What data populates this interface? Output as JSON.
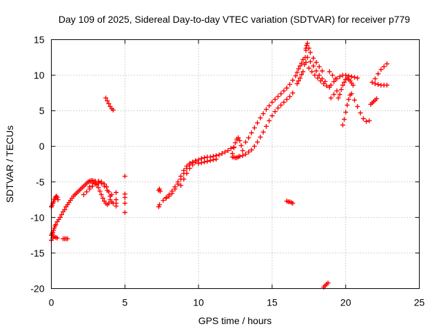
{
  "chart_data": {
    "type": "scatter",
    "title": "Day 109 of 2025, Sidereal Day-to-day VTEC variation (SDTVAR) for receiver p779",
    "xlabel": "GPS time / hours",
    "ylabel": "SDTVAR / TECUs",
    "xlim": [
      0,
      25
    ],
    "ylim": [
      -20,
      15
    ],
    "xticks": [
      0,
      5,
      10,
      15,
      20,
      25
    ],
    "yticks": [
      -20,
      -15,
      -10,
      -5,
      0,
      5,
      10,
      15
    ],
    "xtick_labels": [
      "0",
      "5",
      "10",
      "15",
      "20",
      "25"
    ],
    "ytick_labels": [
      "-20",
      "-15",
      "-10",
      "-5",
      "0",
      "5",
      "10",
      "15"
    ],
    "grid": true,
    "marker": "+",
    "color": "#ff0000",
    "series": [
      {
        "name": "SDTVAR",
        "x": [
          0.0,
          0.05,
          0.1,
          0.15,
          0.2,
          0.25,
          0.3,
          0.35,
          0.4,
          0.45,
          0.0,
          0.05,
          0.1,
          0.15,
          0.2,
          0.25,
          0.3,
          0.4,
          0.5,
          0.6,
          0.7,
          0.8,
          0.9,
          1.0,
          1.1,
          1.2,
          1.3,
          1.4,
          1.5,
          1.6,
          1.7,
          1.8,
          1.9,
          2.0,
          2.1,
          2.2,
          2.3,
          2.4,
          2.5,
          2.6,
          2.7,
          2.8,
          2.9,
          3.0,
          3.1,
          3.2,
          3.3,
          3.4,
          3.5,
          3.6,
          3.7,
          3.8,
          3.9,
          4.0,
          4.1,
          2.2,
          2.4,
          2.6,
          2.8,
          3.0,
          3.2,
          3.4,
          3.6,
          3.8,
          4.0,
          4.2,
          2.6,
          2.8,
          3.0,
          3.2,
          3.4,
          3.6,
          3.75,
          3.9,
          4.0,
          4.1,
          0.0,
          0.1,
          0.2,
          0.3,
          0.4,
          0.8,
          0.9,
          1.0,
          1.1,
          3.7,
          3.8,
          3.9,
          4.0,
          4.1,
          4.2,
          4.4,
          4.4,
          4.4,
          4.4,
          5.0,
          5.0,
          5.0,
          5.0,
          5.0,
          7.3,
          7.35,
          7.4,
          7.3,
          7.35,
          7.6,
          7.8,
          8.0,
          8.2,
          8.4,
          8.6,
          8.8,
          9.0,
          9.2,
          9.4,
          9.6,
          9.8,
          7.8,
          8.0,
          8.2,
          8.4,
          8.6,
          8.8,
          9.0,
          9.2,
          9.4,
          9.6,
          8.8,
          9.0,
          9.2,
          9.4,
          9.6,
          9.8,
          10.0,
          10.2,
          10.4,
          10.6,
          10.8,
          11.0,
          11.2,
          11.4,
          11.6,
          11.8,
          12.0,
          12.2,
          12.4,
          10.0,
          10.2,
          10.4,
          10.6,
          10.8,
          11.0,
          11.2,
          12.3,
          12.4,
          12.5,
          12.6,
          12.7,
          12.8,
          12.9,
          13.0,
          12.3,
          12.4,
          12.5,
          12.6,
          12.7,
          12.8,
          13.0,
          13.2,
          13.4,
          13.6,
          13.8,
          14.0,
          14.2,
          14.4,
          14.6,
          14.8,
          15.0,
          15.2,
          15.4,
          15.6,
          15.8,
          16.0,
          16.2,
          16.4,
          13.2,
          13.4,
          13.6,
          13.8,
          14.0,
          14.2,
          14.4,
          14.6,
          14.8,
          15.0,
          15.2,
          15.4,
          15.6,
          15.8,
          16.0,
          16.2,
          16.4,
          16.6,
          16.7,
          16.8,
          16.9,
          17.0,
          17.1,
          17.3,
          16.7,
          16.8,
          16.9,
          17.0,
          17.1,
          17.2,
          17.25,
          17.3,
          17.35,
          17.4,
          17.5,
          17.6,
          17.8,
          18.0,
          18.2,
          18.4,
          17.4,
          17.6,
          17.8,
          18.0,
          18.2,
          18.4,
          18.6,
          17.3,
          17.5,
          17.7,
          17.9,
          18.1,
          18.3,
          18.5,
          18.7,
          18.9,
          18.9,
          19.1,
          19.3,
          18.5,
          18.6,
          18.7,
          18.8,
          16.0,
          16.1,
          16.2,
          16.3,
          16.4,
          19.0,
          19.2,
          19.4,
          19.0,
          19.2,
          19.4,
          19.6,
          19.8,
          20.0,
          20.2,
          20.4,
          20.6,
          20.8,
          19.5,
          19.6,
          19.7,
          19.8,
          19.9,
          20.0,
          20.1,
          20.2,
          20.3,
          20.4,
          20.5,
          19.8,
          19.9,
          20.0,
          20.1,
          20.2,
          20.3,
          20.4,
          20.6,
          20.8,
          21.0,
          21.2,
          21.4,
          21.6,
          21.8,
          22.0,
          22.2,
          22.4,
          22.6,
          22.8,
          22.0,
          22.2,
          22.4,
          22.6,
          22.8,
          21.7,
          21.8,
          21.9,
          22.0,
          22.1
        ],
        "y": [
          -8.5,
          -8.3,
          -8.0,
          -7.8,
          -7.5,
          -7.3,
          -7.1,
          -7.0,
          -7.2,
          -7.5,
          -12.5,
          -12.3,
          -12.1,
          -11.8,
          -11.5,
          -11.2,
          -11.0,
          -10.6,
          -10.3,
          -10.0,
          -9.6,
          -9.2,
          -8.9,
          -8.5,
          -8.2,
          -7.9,
          -7.6,
          -7.3,
          -7.0,
          -6.8,
          -6.6,
          -6.4,
          -6.2,
          -6.0,
          -5.8,
          -5.6,
          -5.4,
          -5.2,
          -5.0,
          -4.9,
          -4.8,
          -4.8,
          -4.9,
          -5.1,
          -5.4,
          -5.8,
          -6.3,
          -6.8,
          -7.3,
          -7.7,
          -8.0,
          -8.2,
          -8.0,
          -7.5,
          -6.8,
          -6.8,
          -6.4,
          -6.0,
          -5.6,
          -5.3,
          -5.1,
          -5.2,
          -5.6,
          -6.2,
          -7.0,
          -8.0,
          -5.7,
          -5.2,
          -4.9,
          -4.9,
          -5.0,
          -5.3,
          -5.7,
          -6.4,
          -7.0,
          -7.8,
          -13.2,
          -12.9,
          -12.7,
          -12.8,
          -12.9,
          -13.0,
          -13.0,
          -13.0,
          -13.0,
          6.8,
          6.4,
          6.0,
          5.6,
          5.3,
          5.1,
          -6.5,
          -7.5,
          -8.0,
          -8.4,
          -4.2,
          -6.7,
          -7.2,
          -8.0,
          -9.3,
          -6.2,
          -6.0,
          -6.3,
          -8.5,
          -8.2,
          -7.6,
          -7.2,
          -6.8,
          -6.3,
          -5.7,
          -5.0,
          -4.2,
          -3.4,
          -2.8,
          -2.4,
          -2.2,
          -2.0,
          -7.3,
          -7.0,
          -6.6,
          -6.0,
          -5.3,
          -4.6,
          -3.8,
          -3.1,
          -2.6,
          -2.3,
          -5.5,
          -4.6,
          -3.8,
          -3.1,
          -2.6,
          -2.2,
          -1.9,
          -1.7,
          -1.6,
          -1.5,
          -1.5,
          -1.4,
          -1.3,
          -1.2,
          -1.0,
          -0.8,
          -0.6,
          -0.3,
          -0.1,
          -2.4,
          -2.3,
          -2.2,
          -2.1,
          -2.0,
          -1.9,
          -1.8,
          -1.0,
          -0.2,
          0.5,
          1.0,
          1.2,
          0.8,
          0.1,
          -0.6,
          -1.5,
          -1.5,
          -1.6,
          -1.6,
          -1.5,
          -1.4,
          -1.3,
          -1.1,
          -0.8,
          -0.5,
          0.0,
          0.6,
          1.3,
          2.0,
          2.8,
          3.6,
          4.3,
          4.9,
          5.4,
          5.8,
          6.2,
          6.6,
          7.0,
          7.5,
          0.6,
          1.2,
          1.9,
          2.6,
          3.3,
          4.0,
          4.6,
          5.2,
          5.7,
          6.2,
          6.6,
          7.0,
          7.4,
          7.8,
          8.2,
          8.7,
          9.3,
          9.9,
          10.4,
          10.9,
          11.3,
          11.7,
          12.2,
          13.8,
          8.8,
          9.2,
          9.6,
          10.1,
          10.5,
          11.5,
          12.5,
          13.5,
          14.2,
          14.5,
          13.8,
          13.2,
          12.4,
          11.8,
          11.2,
          10.6,
          12.5,
          11.9,
          11.3,
          10.6,
          10.0,
          9.5,
          9.1,
          11.8,
          11.0,
          10.5,
          10.0,
          9.6,
          9.2,
          8.8,
          8.5,
          8.3,
          10.5,
          10.0,
          9.5,
          -19.8,
          -19.6,
          -19.4,
          -19.2,
          -7.7,
          -7.8,
          -7.8,
          -7.9,
          -8.0,
          6.8,
          7.3,
          7.8,
          8.6,
          9.1,
          9.5,
          9.8,
          10.0,
          10.0,
          9.9,
          9.8,
          9.7,
          9.6,
          6.8,
          7.3,
          8.0,
          8.6,
          9.0,
          9.4,
          9.6,
          9.4,
          9.2,
          8.9,
          8.6,
          3.0,
          3.8,
          4.8,
          5.8,
          6.6,
          7.2,
          7.4,
          6.5,
          5.6,
          4.7,
          3.9,
          3.5,
          3.6,
          9.0,
          8.8,
          8.7,
          8.6,
          8.6,
          8.6,
          9.5,
          10.2,
          10.8,
          11.2,
          11.6,
          5.9,
          6.1,
          6.3,
          6.5,
          6.7
        ]
      }
    ]
  }
}
